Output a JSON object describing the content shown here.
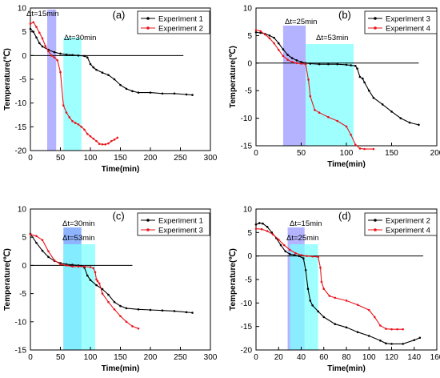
{
  "chart_data": [
    {
      "type": "line",
      "panel_label": "(a)",
      "xlabel": "Time(min)",
      "ylabel": "Temperature(℃)",
      "xlim": [
        0,
        300
      ],
      "ylim": [
        -20,
        10
      ],
      "xticks": [
        0,
        50,
        100,
        150,
        200,
        250,
        300
      ],
      "yticks": [
        -20,
        -15,
        -10,
        -5,
        0,
        5,
        10
      ],
      "legend_position": "top-right",
      "zero_line_to_x": 255,
      "series": [
        {
          "name": "Experiment 1",
          "color": "#000000",
          "x": [
            0,
            5,
            10,
            15,
            20,
            30,
            40,
            50,
            60,
            70,
            80,
            90,
            95,
            100,
            105,
            110,
            120,
            130,
            140,
            150,
            160,
            170,
            180,
            200,
            220,
            240,
            260,
            270
          ],
          "y": [
            5.6,
            5.0,
            3.8,
            2.6,
            1.9,
            1.2,
            0.7,
            0.4,
            0.2,
            0.1,
            0.0,
            -0.1,
            -0.4,
            -1.8,
            -2.5,
            -3.0,
            -3.6,
            -4.1,
            -5.0,
            -6.2,
            -7.0,
            -7.5,
            -7.8,
            -7.8,
            -8.0,
            -8.0,
            -8.2,
            -8.3
          ]
        },
        {
          "name": "Experiment 2",
          "color": "#e8141c",
          "x": [
            0,
            5,
            10,
            15,
            20,
            25,
            30,
            35,
            40,
            45,
            50,
            55,
            60,
            65,
            70,
            75,
            80,
            85,
            90,
            95,
            100,
            105,
            110,
            115,
            120,
            125,
            130,
            135,
            140,
            145
          ],
          "y": [
            6.7,
            7.0,
            6.0,
            4.8,
            3.6,
            2.0,
            0.9,
            0.0,
            -0.4,
            -1.0,
            -3.5,
            -10.5,
            -12.0,
            -13.0,
            -13.8,
            -14.2,
            -14.5,
            -15.0,
            -15.6,
            -16.5,
            -17.0,
            -17.5,
            -18.0,
            -18.6,
            -18.7,
            -18.7,
            -18.5,
            -18.0,
            -17.7,
            -17.3
          ]
        }
      ],
      "annotations": [
        {
          "text": "Δt=15min",
          "x_range": [
            28,
            43
          ],
          "color": "#9999ff"
        },
        {
          "text": "Δt=30min",
          "x_range": [
            55,
            85
          ],
          "color": "#7fffff"
        }
      ]
    },
    {
      "type": "line",
      "panel_label": "(b)",
      "xlabel": "Time(min)",
      "ylabel": "Temperature(℃)",
      "xlim": [
        0,
        200
      ],
      "ylim": [
        -15,
        10
      ],
      "xticks": [
        0,
        50,
        100,
        150,
        200
      ],
      "yticks": [
        -15,
        -10,
        -5,
        0,
        5,
        10
      ],
      "legend_position": "top-right",
      "zero_line_to_x": 180,
      "series": [
        {
          "name": "Experiment 3",
          "color": "#000000",
          "x": [
            0,
            5,
            10,
            15,
            20,
            25,
            30,
            35,
            40,
            45,
            50,
            55,
            60,
            70,
            80,
            90,
            100,
            105,
            110,
            112,
            115,
            118,
            120,
            125,
            130,
            140,
            150,
            160,
            170,
            180
          ],
          "y": [
            5.6,
            5.5,
            5.3,
            5.0,
            4.6,
            3.6,
            2.5,
            1.5,
            0.9,
            0.5,
            0.2,
            0.0,
            -0.1,
            -0.2,
            -0.2,
            -0.2,
            -0.3,
            -0.4,
            -0.5,
            -1.0,
            -2.5,
            -2.8,
            -3.5,
            -5.0,
            -6.3,
            -7.5,
            -8.8,
            -10.0,
            -10.8,
            -11.2
          ]
        },
        {
          "name": "Experiment 4",
          "color": "#e8141c",
          "x": [
            0,
            5,
            10,
            15,
            20,
            25,
            30,
            35,
            40,
            45,
            50,
            55,
            58,
            60,
            65,
            70,
            80,
            90,
            100,
            105,
            110,
            115,
            120,
            130
          ],
          "y": [
            6.0,
            5.8,
            5.2,
            4.5,
            3.6,
            2.4,
            1.3,
            0.6,
            0.2,
            0.0,
            -0.1,
            -0.2,
            -3.0,
            -6.0,
            -8.5,
            -9.0,
            -9.8,
            -10.5,
            -11.5,
            -13.0,
            -14.8,
            -15.5,
            -15.6,
            -15.6
          ]
        }
      ],
      "annotations": [
        {
          "text": "Δt=25min",
          "x_range": [
            30,
            55
          ],
          "color": "#9999ff"
        },
        {
          "text": "Δt=53min",
          "x_range": [
            55,
            108
          ],
          "color": "#7fffff"
        }
      ]
    },
    {
      "type": "line",
      "panel_label": "(c)",
      "xlabel": "Time(min)",
      "ylabel": "Temperature(℃)",
      "xlim": [
        0,
        300
      ],
      "ylim": [
        -15,
        10
      ],
      "xticks": [
        0,
        50,
        100,
        150,
        200,
        250,
        300
      ],
      "yticks": [
        -15,
        -10,
        -5,
        0,
        5,
        10
      ],
      "legend_position": "top-right",
      "zero_line_to_x": 170,
      "series": [
        {
          "name": "Experiment 1",
          "color": "#000000",
          "x": [
            0,
            10,
            20,
            30,
            40,
            50,
            60,
            70,
            80,
            85,
            90,
            95,
            100,
            110,
            120,
            130,
            140,
            150,
            160,
            180,
            200,
            220,
            240,
            260,
            270
          ],
          "y": [
            5.6,
            4.0,
            2.6,
            1.5,
            0.8,
            0.4,
            0.2,
            0.1,
            0.0,
            -0.1,
            -0.4,
            -1.8,
            -2.6,
            -3.5,
            -4.2,
            -5.2,
            -6.5,
            -7.2,
            -7.6,
            -7.8,
            -7.9,
            -8.0,
            -8.1,
            -8.3,
            -8.4
          ]
        },
        {
          "name": "Experiment 3",
          "color": "#e8141c",
          "x": [
            0,
            10,
            20,
            30,
            40,
            50,
            60,
            70,
            80,
            90,
            100,
            105,
            108,
            110,
            112,
            115,
            120,
            130,
            140,
            150,
            160,
            170,
            180
          ],
          "y": [
            5.5,
            5.2,
            4.5,
            2.5,
            0.9,
            0.2,
            0.0,
            -0.2,
            -0.2,
            -0.2,
            -0.3,
            -0.5,
            -1.2,
            -2.5,
            -2.8,
            -3.2,
            -5.0,
            -6.5,
            -7.8,
            -9.0,
            -10.0,
            -10.8,
            -11.2
          ]
        }
      ],
      "annotations": [
        {
          "text": "Δt=30min",
          "x_range": [
            55,
            85
          ],
          "color": "#6a9bff"
        },
        {
          "text": "Δt=53min",
          "x_range": [
            55,
            108
          ],
          "color": "#7fffff"
        }
      ]
    },
    {
      "type": "line",
      "panel_label": "(d)",
      "xlabel": "Time(min)",
      "ylabel": "Temperature(℃)",
      "xlim": [
        0,
        160
      ],
      "ylim": [
        -20,
        10
      ],
      "xticks": [
        0,
        20,
        40,
        60,
        80,
        100,
        120,
        140,
        160
      ],
      "yticks": [
        -20,
        -15,
        -10,
        -5,
        0,
        5,
        10
      ],
      "legend_position": "top-right",
      "zero_line_to_x": 148,
      "series": [
        {
          "name": "Experiment 2",
          "color": "#000000",
          "x": [
            0,
            3,
            6,
            10,
            14,
            18,
            22,
            26,
            30,
            34,
            38,
            42,
            44,
            46,
            48,
            50,
            55,
            60,
            70,
            80,
            90,
            100,
            110,
            115,
            120,
            130,
            140,
            145
          ],
          "y": [
            6.7,
            7.0,
            6.9,
            6.2,
            5.0,
            3.8,
            2.3,
            1.0,
            0.4,
            0.2,
            0.0,
            -0.5,
            -3.0,
            -7.0,
            -9.5,
            -10.5,
            -11.8,
            -13.0,
            -14.5,
            -15.2,
            -16.2,
            -17.0,
            -18.0,
            -18.6,
            -18.7,
            -18.7,
            -17.9,
            -17.4
          ]
        },
        {
          "name": "Experiment 4",
          "color": "#e8141c",
          "x": [
            0,
            5,
            10,
            15,
            20,
            25,
            30,
            35,
            40,
            45,
            50,
            55,
            57,
            58,
            60,
            65,
            70,
            80,
            90,
            100,
            105,
            110,
            115,
            120,
            125,
            130
          ],
          "y": [
            5.8,
            5.7,
            5.3,
            4.6,
            3.5,
            2.3,
            1.3,
            0.6,
            0.2,
            0.0,
            -0.1,
            -0.2,
            -2.5,
            -5.5,
            -7.0,
            -8.5,
            -8.9,
            -9.5,
            -10.4,
            -11.5,
            -13.0,
            -14.8,
            -15.5,
            -15.6,
            -15.6,
            -15.6
          ]
        }
      ],
      "annotations": [
        {
          "text": "Δt=15min",
          "x_range": [
            28,
            43
          ],
          "color": "#9999ff"
        },
        {
          "text": "Δt=25min",
          "x_range": [
            30,
            55
          ],
          "color": "#7fffff"
        }
      ]
    }
  ]
}
